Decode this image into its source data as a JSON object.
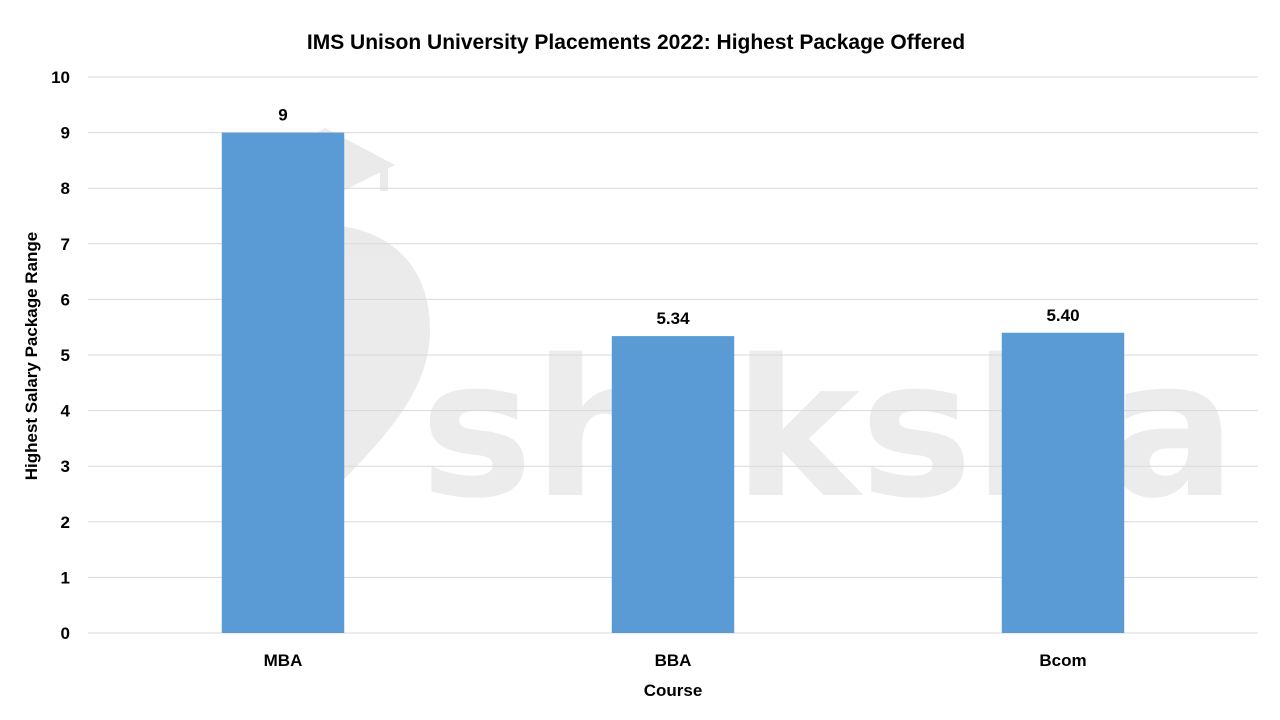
{
  "chart_data": {
    "type": "bar",
    "title": "IMS Unison University Placements 2022: Highest Package Offered",
    "xlabel": "Course",
    "ylabel": "Highest Salary Package Range",
    "categories": [
      "MBA",
      "BBA",
      "Bcom"
    ],
    "values": [
      9,
      5.34,
      5.4
    ],
    "data_labels": [
      "9",
      "5.34",
      "5.40"
    ],
    "ylim": [
      0,
      10
    ],
    "yticks": [
      0,
      1,
      2,
      3,
      4,
      5,
      6,
      7,
      8,
      9,
      10
    ],
    "grid": true,
    "legend": "none",
    "bar_color": "#5b9bd5",
    "grid_color": "#d9d9d9"
  },
  "watermark": {
    "text": "shiksha",
    "icon": "graduation-cap-pen-icon"
  }
}
